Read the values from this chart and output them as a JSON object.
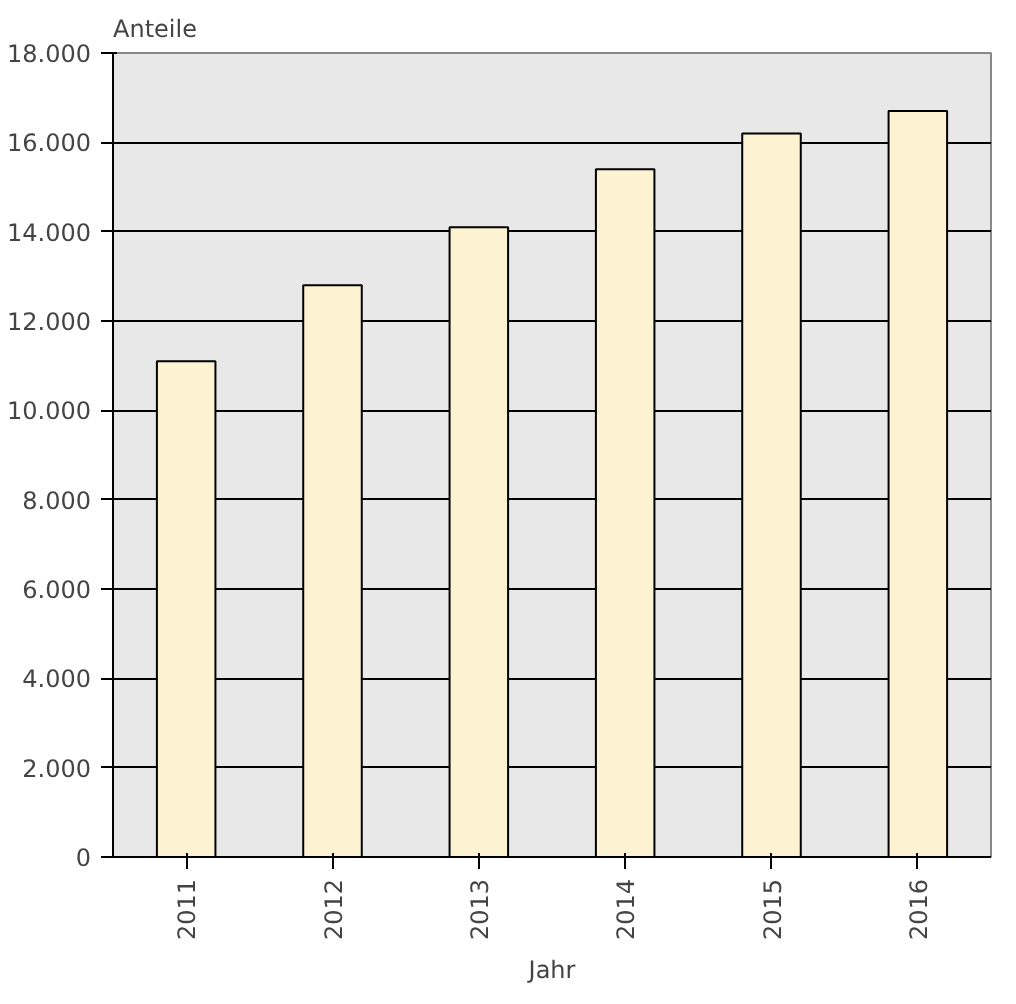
{
  "chart_data": {
    "type": "bar",
    "ylabel": "Anteile",
    "xlabel": "Jahr",
    "categories": [
      "2011",
      "2012",
      "2013",
      "2014",
      "2015",
      "2016"
    ],
    "values": [
      11100,
      12800,
      14100,
      15400,
      16200,
      16700
    ],
    "color": "#fdf3d3",
    "ylim": [
      0,
      18000
    ],
    "yticks": [
      {
        "value": 0,
        "label": "0"
      },
      {
        "value": 2000,
        "label": "2.000"
      },
      {
        "value": 4000,
        "label": "4.000"
      },
      {
        "value": 6000,
        "label": "6.000"
      },
      {
        "value": 8000,
        "label": "8.000"
      },
      {
        "value": 10000,
        "label": "10.000"
      },
      {
        "value": 12000,
        "label": "12.000"
      },
      {
        "value": 14000,
        "label": "14.000"
      },
      {
        "value": 16000,
        "label": "16.000"
      },
      {
        "value": 18000,
        "label": "18.000"
      }
    ],
    "grid": "y"
  }
}
